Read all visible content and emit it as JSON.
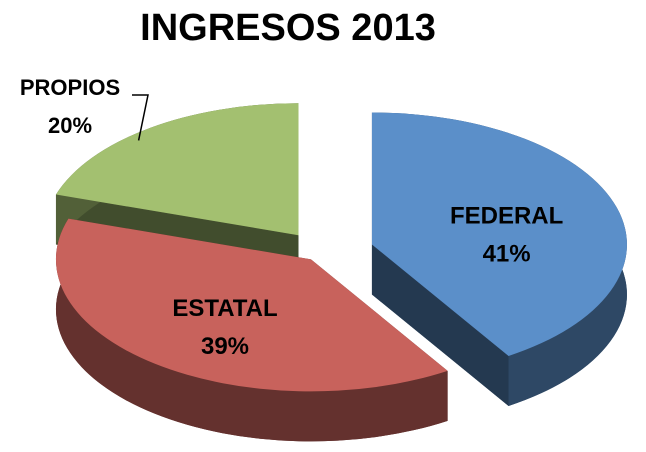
{
  "chart_data": {
    "type": "pie3d",
    "title": "INGRESOS 2013",
    "categories": [
      "FEDERAL",
      "ESTATAL",
      "PROPIOS"
    ],
    "values": [
      41,
      39,
      20
    ],
    "value_labels": [
      "41%",
      "39%",
      "20%"
    ],
    "colors": [
      "#5b8fc9",
      "#c8625c",
      "#a3c070"
    ]
  }
}
